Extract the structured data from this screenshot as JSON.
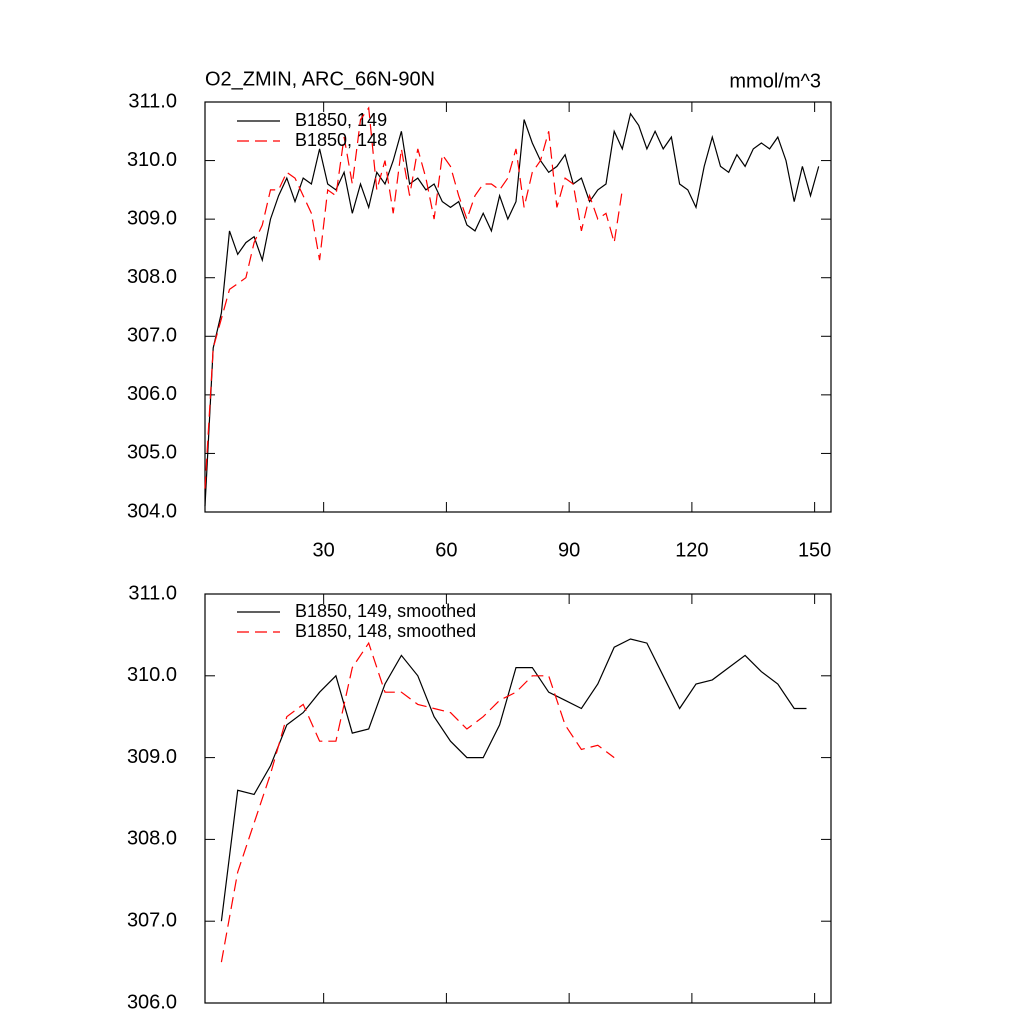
{
  "chart_data": [
    {
      "type": "line",
      "title": "O2_ZMIN, ARC_66N-90N",
      "units": "mmol/m^3",
      "x": [
        1,
        3,
        5,
        7,
        9,
        11,
        13,
        15,
        17,
        19,
        21,
        23,
        25,
        27,
        29,
        31,
        33,
        35,
        37,
        39,
        41,
        43,
        45,
        47,
        49,
        51,
        53,
        55,
        57,
        59,
        61,
        63,
        65,
        67,
        69,
        71,
        73,
        75,
        77,
        79,
        81,
        83,
        85,
        87,
        89,
        91,
        93,
        95,
        97,
        99,
        101,
        103,
        105,
        107,
        109,
        111,
        113,
        115,
        117,
        119,
        121,
        123,
        125,
        127,
        129,
        131,
        133,
        135,
        137,
        139,
        141,
        143,
        145,
        147,
        149,
        151
      ],
      "series": [
        {
          "name": "B1850, 149",
          "color": "#000000",
          "dashed": false,
          "values": [
            304.1,
            306.8,
            307.4,
            308.8,
            308.4,
            308.6,
            308.7,
            308.3,
            309.0,
            309.4,
            309.7,
            309.3,
            309.7,
            309.6,
            310.2,
            309.6,
            309.5,
            309.8,
            309.1,
            309.6,
            309.2,
            309.8,
            309.6,
            310.0,
            310.5,
            309.6,
            309.7,
            309.5,
            309.6,
            309.3,
            309.2,
            309.3,
            308.9,
            308.8,
            309.1,
            308.8,
            309.4,
            309.0,
            309.3,
            310.7,
            310.3,
            310.0,
            309.8,
            309.9,
            310.1,
            309.6,
            309.7,
            309.3,
            309.5,
            309.6,
            310.5,
            310.2,
            310.8,
            310.6,
            310.2,
            310.5,
            310.2,
            310.4,
            309.6,
            309.5,
            309.2,
            309.9,
            310.4,
            309.9,
            309.8,
            310.1,
            309.9,
            310.2,
            310.3,
            310.2,
            310.4,
            310.0,
            309.3,
            309.9,
            309.4,
            309.9
          ]
        },
        {
          "name": "B1850, 148",
          "color": "#ff0000",
          "dashed": true,
          "values": [
            304.4,
            306.8,
            307.3,
            307.8,
            307.9,
            308.0,
            308.6,
            308.9,
            309.5,
            309.5,
            309.8,
            309.7,
            309.4,
            309.1,
            308.3,
            309.5,
            309.4,
            310.4,
            309.6,
            310.7,
            310.9,
            309.5,
            310.0,
            309.1,
            310.2,
            309.4,
            310.2,
            309.7,
            309.0,
            310.1,
            309.9,
            309.4,
            309.0,
            309.4,
            309.6,
            309.6,
            309.5,
            309.7,
            310.2,
            309.2,
            309.8,
            310.0,
            310.5,
            309.2,
            309.7,
            309.6,
            308.8,
            309.4,
            309.0,
            309.1,
            308.6,
            309.5,
            null,
            null,
            null,
            null,
            null,
            null,
            null,
            null,
            null,
            null,
            null,
            null,
            null,
            null,
            null,
            null,
            null,
            null,
            null,
            null,
            null,
            null,
            null,
            null
          ]
        }
      ],
      "xlim": [
        1,
        154
      ],
      "xticks": [
        30,
        60,
        90,
        120,
        150
      ],
      "ylim": [
        304,
        311
      ],
      "yticks": [
        {
          "value": 304,
          "label": "304.0"
        },
        {
          "value": 305,
          "label": "305.0"
        },
        {
          "value": 306,
          "label": "306.0"
        },
        {
          "value": 307,
          "label": "307.0"
        },
        {
          "value": 308,
          "label": "308.0"
        },
        {
          "value": 309,
          "label": "309.0"
        },
        {
          "value": 310,
          "label": "310.0"
        },
        {
          "value": 311,
          "label": "311.0"
        }
      ]
    },
    {
      "type": "line",
      "x": [
        5,
        9,
        13,
        17,
        21,
        25,
        29,
        33,
        37,
        41,
        45,
        49,
        53,
        57,
        61,
        65,
        69,
        73,
        77,
        81,
        85,
        89,
        93,
        97,
        101,
        105,
        109,
        113,
        117,
        121,
        125,
        129,
        133,
        137,
        141,
        145,
        148
      ],
      "series": [
        {
          "name": "B1850, 149, smoothed",
          "color": "#000000",
          "dashed": false,
          "values": [
            307.0,
            308.6,
            308.55,
            308.9,
            309.4,
            309.55,
            309.8,
            310.0,
            309.3,
            309.35,
            309.9,
            310.25,
            310.0,
            309.5,
            309.2,
            309.0,
            309.0,
            309.4,
            310.1,
            310.1,
            309.8,
            309.7,
            309.6,
            309.9,
            310.35,
            310.45,
            310.4,
            310.0,
            309.6,
            309.9,
            309.95,
            310.1,
            310.25,
            310.05,
            309.9,
            309.6,
            309.6
          ]
        },
        {
          "name": "B1850, 148, smoothed",
          "color": "#ff0000",
          "dashed": true,
          "values": [
            306.5,
            307.6,
            308.2,
            308.8,
            309.5,
            309.65,
            309.2,
            309.2,
            310.1,
            310.4,
            309.8,
            309.8,
            309.65,
            309.6,
            309.55,
            309.35,
            309.5,
            309.7,
            309.8,
            310.0,
            310.0,
            309.4,
            309.1,
            309.15,
            309.0,
            null,
            null,
            null,
            null,
            null,
            null,
            null,
            null,
            null,
            null,
            null,
            null
          ]
        }
      ],
      "xlim": [
        1,
        154
      ],
      "xticks": [
        30,
        60,
        90,
        120,
        150
      ],
      "ylim": [
        306,
        311
      ],
      "yticks": [
        {
          "value": 306,
          "label": "306.0"
        },
        {
          "value": 307,
          "label": "307.0"
        },
        {
          "value": 308,
          "label": "308.0"
        },
        {
          "value": 309,
          "label": "309.0"
        },
        {
          "value": 310,
          "label": "310.0"
        },
        {
          "value": 311,
          "label": "311.0"
        }
      ]
    }
  ]
}
